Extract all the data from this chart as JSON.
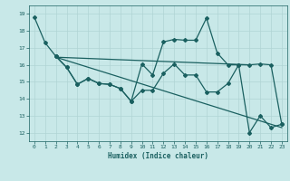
{
  "title": "",
  "xlabel": "Humidex (Indice chaleur)",
  "xlim": [
    -0.5,
    23.5
  ],
  "ylim": [
    11.5,
    19.5
  ],
  "xticks": [
    0,
    1,
    2,
    3,
    4,
    5,
    6,
    7,
    8,
    9,
    10,
    11,
    12,
    13,
    14,
    15,
    16,
    17,
    18,
    19,
    20,
    21,
    22,
    23
  ],
  "yticks": [
    12,
    13,
    14,
    15,
    16,
    17,
    18,
    19
  ],
  "bg_color": "#c8e8e8",
  "grid_color": "#b0d4d4",
  "line_color": "#1a6060",
  "series1": {
    "comment": "steep drop line: 0->18.8, 1->17.3, 2->16.5",
    "x": [
      0,
      1,
      2
    ],
    "y": [
      18.8,
      17.3,
      16.5
    ]
  },
  "series2": {
    "x": [
      2,
      3,
      4,
      5,
      6,
      7,
      8,
      9,
      10,
      11,
      12,
      13,
      14,
      15,
      16,
      17,
      18,
      19,
      20,
      21,
      22,
      23
    ],
    "y": [
      16.5,
      15.85,
      14.85,
      15.2,
      14.9,
      14.85,
      14.6,
      13.85,
      14.5,
      14.5,
      15.5,
      16.05,
      15.4,
      15.4,
      14.4,
      14.4,
      14.9,
      16.0,
      12.0,
      13.0,
      12.3,
      12.5
    ]
  },
  "series3": {
    "x": [
      2,
      3,
      4,
      5,
      6,
      7,
      8,
      9,
      10,
      11,
      12,
      13,
      14,
      15,
      16,
      17,
      18,
      19,
      20,
      21,
      22,
      23
    ],
    "y": [
      16.5,
      15.85,
      14.85,
      15.2,
      14.9,
      14.85,
      14.6,
      13.85,
      16.05,
      15.4,
      17.35,
      17.5,
      17.45,
      17.45,
      18.75,
      16.7,
      16.0,
      16.0,
      16.0,
      16.05,
      16.0,
      12.5
    ]
  },
  "trend1": {
    "x": [
      2,
      20
    ],
    "y": [
      16.45,
      16.0
    ]
  },
  "trend2": {
    "x": [
      2,
      23
    ],
    "y": [
      16.45,
      12.3
    ]
  }
}
